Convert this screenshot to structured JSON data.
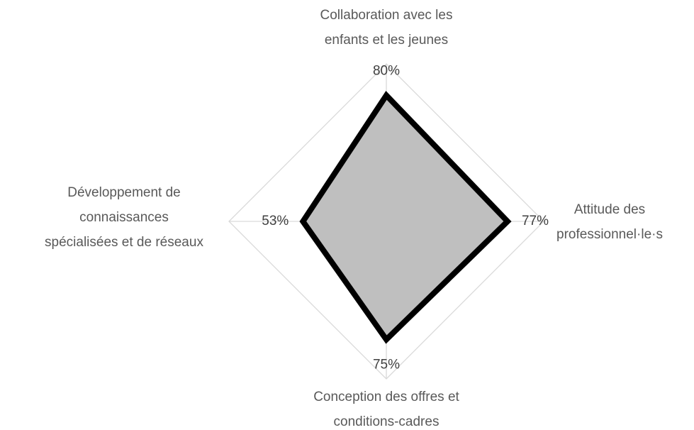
{
  "chart_data": {
    "type": "radar",
    "categories": [
      "Collaboration avec les\nenfants et les jeunes",
      "Attitude des\nprofessionnel·le·s",
      "Conception des offres et\nconditions-cadres",
      "Développement de\nconnaissances\nspécialisées et de réseaux"
    ],
    "values": [
      80,
      77,
      75,
      53
    ],
    "value_labels": [
      "80%",
      "77%",
      "75%",
      "53%"
    ],
    "color": "#bfbfbf",
    "line_color": "#000000",
    "ylim": [
      0,
      100
    ],
    "yticks": [
      0,
      50,
      100
    ],
    "grid": true
  }
}
